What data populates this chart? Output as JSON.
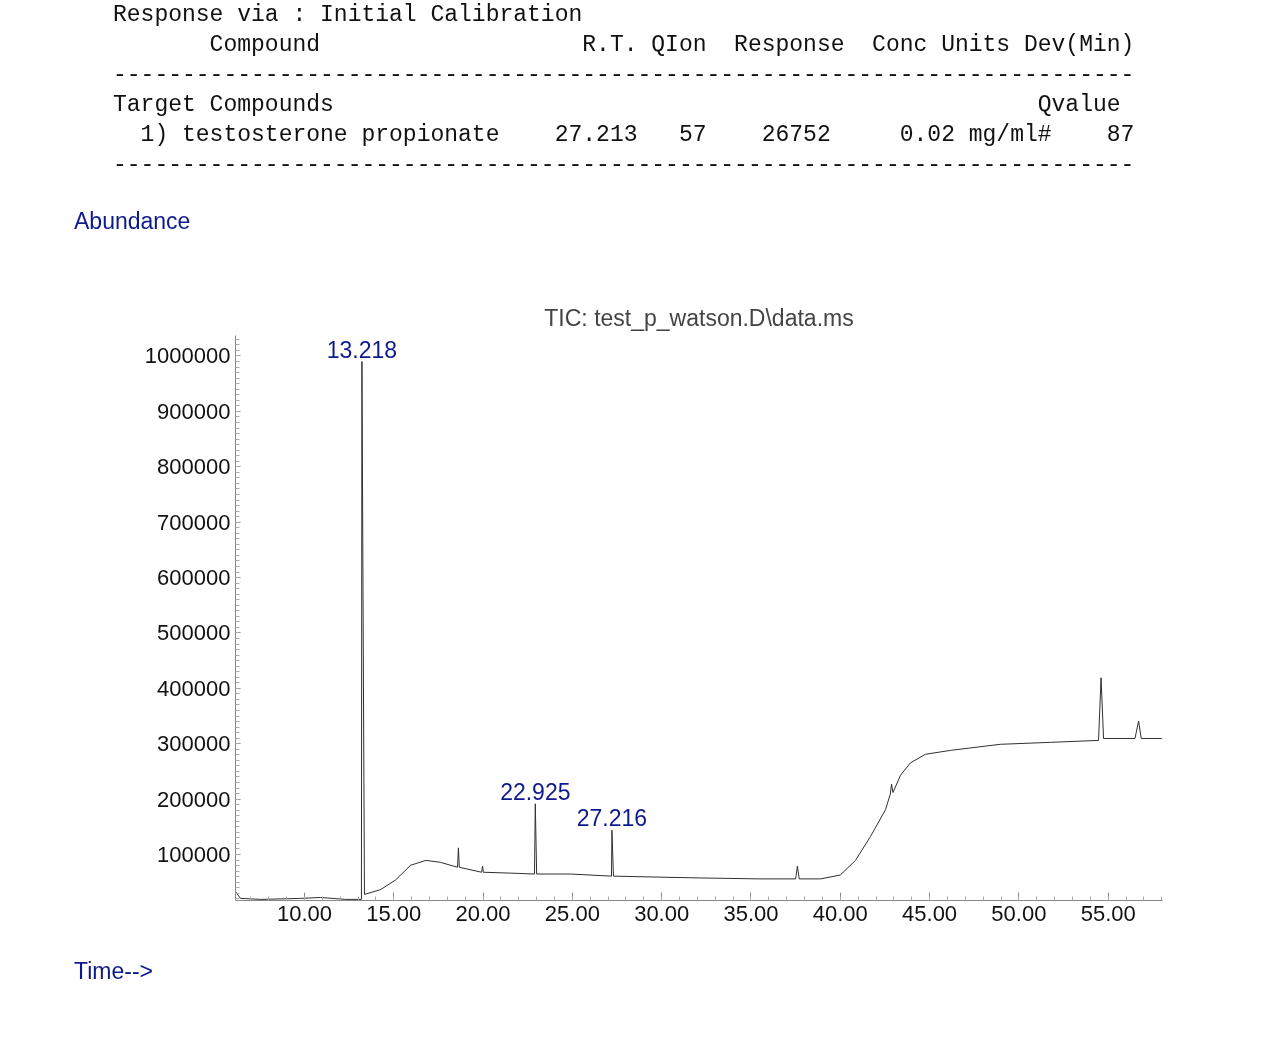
{
  "chart_data": {
    "type": "line",
    "title": "TIC: test_p_watson.D\\data.ms",
    "xlabel": "Time-->",
    "ylabel": "Abundance",
    "annotations": [
      "Response via : Initial Calibration",
      "       Compound                   R.T. QIon  Response  Conc Units Dev(Min)",
      "--------------------------------------------------------------------------",
      "Target Compounds                                                   Qvalue",
      "  1) testosterone propionate    27.213   57    26752     0.02 mg/ml#    87",
      "--------------------------------------------------------------------------",
      {
        "text": "13.218",
        "x": 13.218,
        "y": 990000
      },
      {
        "text": "22.925",
        "x": 22.925,
        "y": 191500
      },
      {
        "text": "27.216",
        "x": 27.216,
        "y": 144000
      }
    ],
    "series": [
      {
        "color": "#303030",
        "x": [
          6.14,
          6.42,
          7.54,
          9.78,
          10.9,
          12.3,
          13.19,
          13.218,
          13.36,
          14.26,
          15.1,
          15.94,
          16.8,
          17.6,
          18.57,
          18.62,
          18.67,
          19.92,
          19.97,
          20.02,
          21.5,
          22.88,
          22.925,
          23.0,
          24.9,
          27.19,
          27.216,
          27.3,
          29.4,
          32.17,
          35.5,
          37.5,
          37.6,
          37.7,
          38.9,
          40.0,
          40.85,
          41.7,
          42.53,
          42.8,
          42.87,
          42.95,
          43.37,
          43.93,
          44.77,
          46.17,
          48.97,
          51.77,
          54.46,
          54.6,
          54.74,
          56.5,
          56.7,
          56.85,
          58.0
        ],
        "values": [
          33000,
          20800,
          19000,
          20800,
          22500,
          19000,
          19000,
          990000,
          28000,
          36600,
          54000,
          80600,
          89400,
          86000,
          77000,
          112000,
          77000,
          68000,
          79000,
          68000,
          66500,
          64800,
          191500,
          64800,
          64800,
          61000,
          144000,
          61000,
          59500,
          57700,
          56000,
          56000,
          79000,
          56000,
          56000,
          63000,
          89400,
          133000,
          181000,
          209000,
          227000,
          212000,
          243000,
          265500,
          281000,
          288000,
          299000,
          302500,
          306000,
          419000,
          309500,
          309500,
          341000,
          309500,
          309500
        ]
      }
    ],
    "xlim": [
      6.14,
      58.04
    ],
    "ylim": [
      17000,
      1037000
    ],
    "xticks": [
      {
        "value": 10,
        "label": "10.00"
      },
      {
        "value": 15,
        "label": "15.00"
      },
      {
        "value": 20,
        "label": "20.00"
      },
      {
        "value": 25,
        "label": "25.00"
      },
      {
        "value": 30,
        "label": "30.00"
      },
      {
        "value": 35,
        "label": "35.00"
      },
      {
        "value": 40,
        "label": "40.00"
      },
      {
        "value": 45,
        "label": "45.00"
      },
      {
        "value": 50,
        "label": "50.00"
      },
      {
        "value": 55,
        "label": "55.00"
      }
    ],
    "yticks": [
      100000,
      200000,
      300000,
      400000,
      500000,
      600000,
      700000,
      800000,
      900000,
      1000000
    ],
    "grid": false,
    "marker": "none",
    "line_style": "solid"
  }
}
